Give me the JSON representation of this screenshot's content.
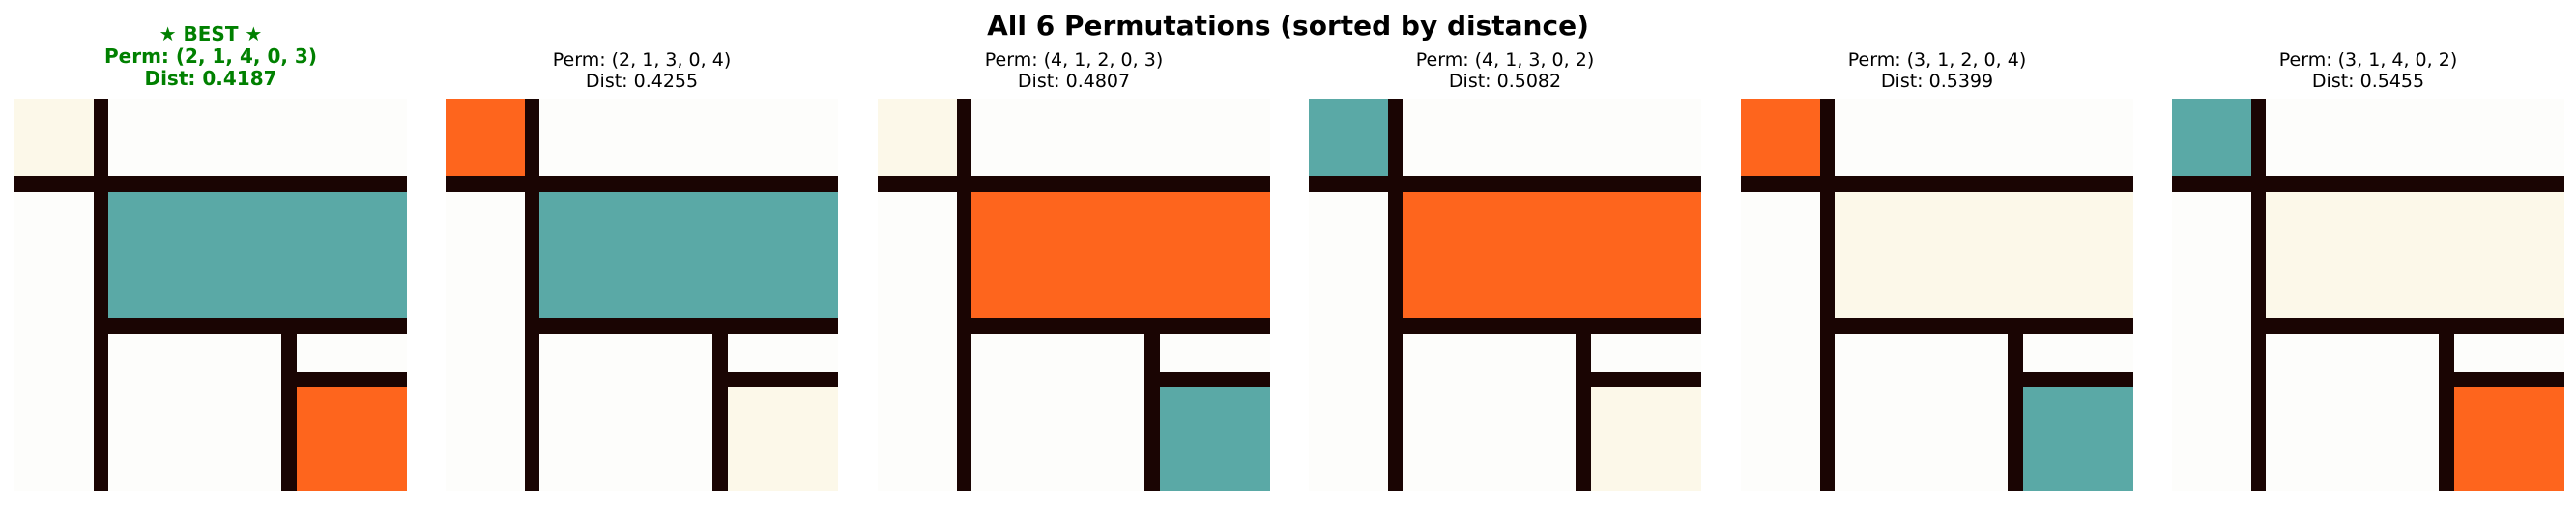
{
  "title": "All 6 Permutations (sorted by distance)",
  "colors": {
    "best_title": "#008000",
    "line": "#1a0503",
    "background": "#fdfdfb",
    "cream": "#fcf8e9",
    "teal": "#5aa9a6",
    "orange": "#fe651d"
  },
  "panels": [
    {
      "badge": "★ BEST ★",
      "perm": "Perm: (2, 1, 4, 0, 3)",
      "dist": "Dist: 0.4187",
      "best": true,
      "fills": {
        "top_left": "cream",
        "middle": "teal",
        "bottom_right": "orange"
      }
    },
    {
      "perm": "Perm: (2, 1, 3, 0, 4)",
      "dist": "Dist: 0.4255",
      "best": false,
      "fills": {
        "top_left": "orange",
        "middle": "teal",
        "bottom_right": "cream"
      }
    },
    {
      "perm": "Perm: (4, 1, 2, 0, 3)",
      "dist": "Dist: 0.4807",
      "best": false,
      "fills": {
        "top_left": "cream",
        "middle": "orange",
        "bottom_right": "teal"
      }
    },
    {
      "perm": "Perm: (4, 1, 3, 0, 2)",
      "dist": "Dist: 0.5082",
      "best": false,
      "fills": {
        "top_left": "teal",
        "middle": "orange",
        "bottom_right": "cream"
      }
    },
    {
      "perm": "Perm: (3, 1, 2, 0, 4)",
      "dist": "Dist: 0.5399",
      "best": false,
      "fills": {
        "top_left": "orange",
        "middle": "cream",
        "bottom_right": "teal"
      }
    },
    {
      "perm": "Perm: (3, 1, 4, 0, 2)",
      "dist": "Dist: 0.5455",
      "best": false,
      "fills": {
        "top_left": "teal",
        "middle": "cream",
        "bottom_right": "orange"
      }
    }
  ]
}
